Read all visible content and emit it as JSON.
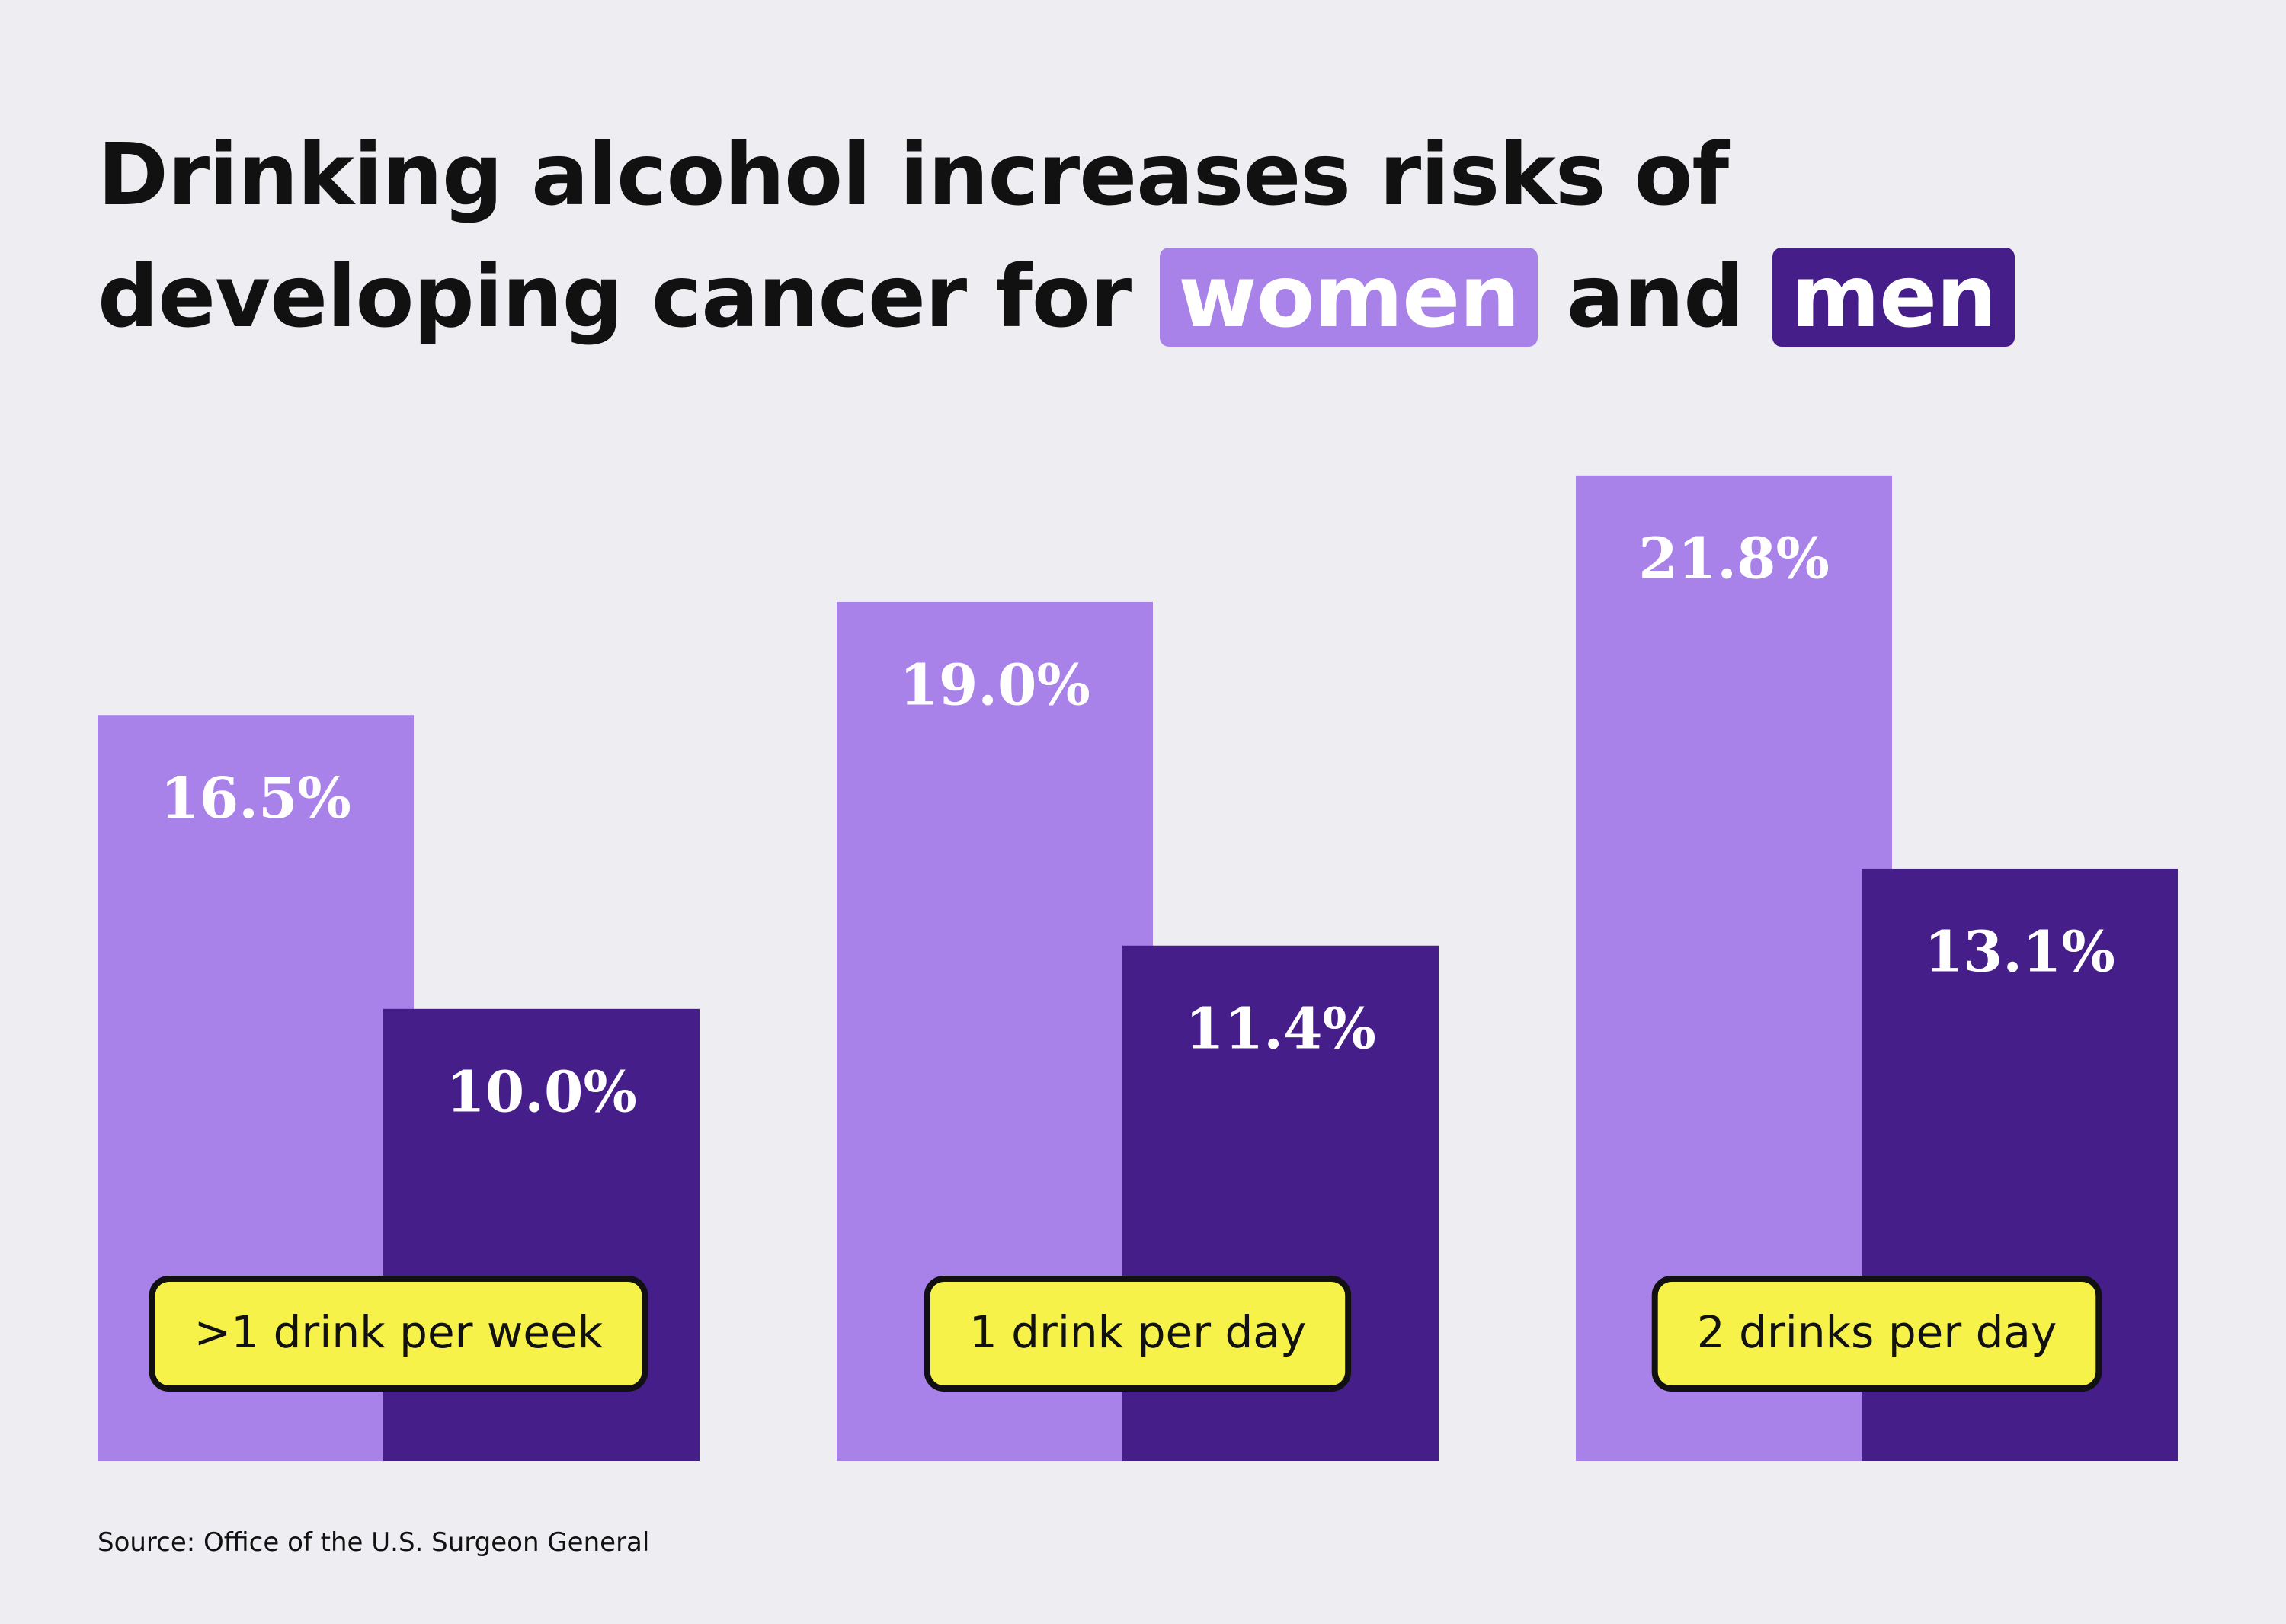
{
  "chart_data": {
    "type": "bar",
    "title": "Drinking alcohol increases risks of developing cancer for",
    "title_joiner": "and",
    "categories": [
      ">1 drink per week",
      "1 drink per day",
      "2 drinks per day"
    ],
    "series": [
      {
        "name": "women",
        "color": "#a882e8",
        "values": [
          16.5,
          19.0,
          21.8
        ],
        "value_labels": [
          "16.5%",
          "19.0%",
          "21.8%"
        ]
      },
      {
        "name": "men",
        "color": "#461e8a",
        "values": [
          10.0,
          11.4,
          13.1
        ],
        "value_labels": [
          "10.0%",
          "11.4%",
          "13.1%"
        ]
      }
    ],
    "ylim": [
      0,
      22
    ],
    "source": "Source: Office of the U.S. Surgeon General"
  }
}
